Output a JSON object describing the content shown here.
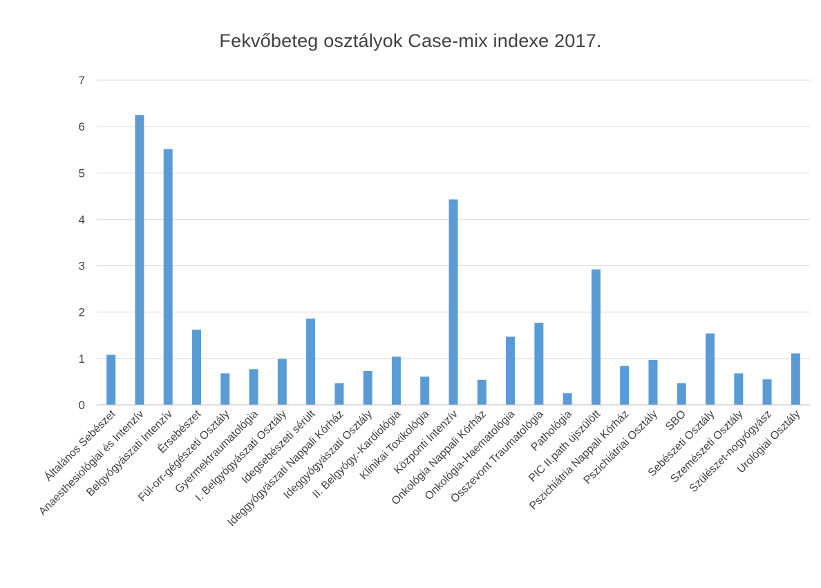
{
  "chart_data": {
    "type": "bar",
    "title": "Fekvőbeteg osztályok Case-mix indexe 2017.",
    "xlabel": "",
    "ylabel": "",
    "ylim": [
      0,
      7
    ],
    "yticks": [
      "0",
      "1",
      "2",
      "3",
      "4",
      "5",
      "6",
      "7"
    ],
    "grid": true,
    "legend": "none",
    "bar_color": "#5b9bd5",
    "categories": [
      "Általános Sebészet",
      "Anaesthesiológiai és Intenzív",
      "Belgyógyászati Intenzív",
      "Érsebészet",
      "Fül-orr-gégészeti Osztály",
      "Gyermektraumatológia",
      "I. Belgyógyászati Osztály",
      "Idegsebészeti sérült",
      "Ideggyógyászati Nappali Kórház",
      "Ideggyógyászati Osztály",
      "II. Belgyógy.-Kardiológia",
      "Klinikai Toxikológia",
      "Központi Intenzív",
      "Onkológia Nappali Kórház",
      "Onkológia-Haematológia",
      "Összevont Traumatológia",
      "Pathológia",
      "PIC II.path újszülött",
      "Pszichiátria Nappali Kórház",
      "Pszichiátriai Osztály",
      "SBO",
      "Sebészeti Osztály",
      "Szemészeti Osztály",
      "Szülészet-nogyógyász",
      "Urológiai Osztály"
    ],
    "values": [
      1.08,
      6.25,
      5.51,
      1.62,
      0.68,
      0.77,
      0.99,
      1.86,
      0.47,
      0.73,
      1.04,
      0.61,
      4.43,
      0.54,
      1.47,
      1.77,
      0.25,
      2.92,
      0.84,
      0.97,
      0.47,
      1.54,
      0.68,
      0.55,
      1.11
    ]
  }
}
